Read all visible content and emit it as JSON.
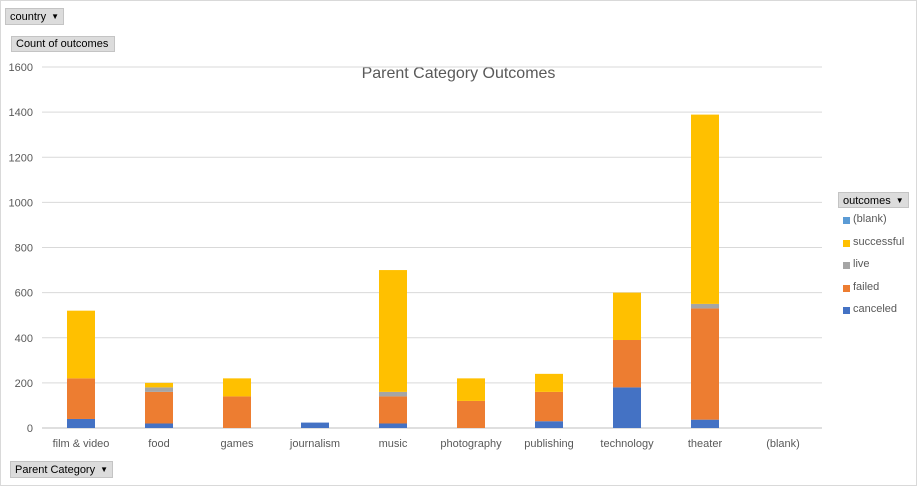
{
  "pivot": {
    "filter_field": "country",
    "value_field": "Count of outcomes",
    "axis_field": "Parent Category",
    "legend_field": "outcomes",
    "dropdown_icon": "dropdown-arrow-icon"
  },
  "chart_data": {
    "type": "bar",
    "stacked": true,
    "title": "Parent Category Outcomes",
    "xlabel": "",
    "ylabel": "",
    "categories": [
      "film & video",
      "food",
      "games",
      "journalism",
      "music",
      "photography",
      "publishing",
      "technology",
      "theater",
      "(blank)"
    ],
    "ylim": [
      0,
      1600
    ],
    "yticks": [
      0,
      200,
      400,
      600,
      800,
      1000,
      1200,
      1400,
      1600
    ],
    "grid": true,
    "legend_position": "right",
    "series": [
      {
        "name": "canceled",
        "color": "#4472c4",
        "values": [
          40,
          20,
          0,
          24,
          20,
          0,
          30,
          180,
          37,
          0
        ]
      },
      {
        "name": "failed",
        "color": "#ed7d31",
        "values": [
          180,
          140,
          140,
          0,
          120,
          120,
          130,
          210,
          493,
          0
        ]
      },
      {
        "name": "live",
        "color": "#a5a5a5",
        "values": [
          0,
          20,
          0,
          0,
          20,
          0,
          0,
          0,
          20,
          0
        ]
      },
      {
        "name": "successful",
        "color": "#ffc000",
        "values": [
          300,
          20,
          80,
          0,
          540,
          100,
          80,
          210,
          839,
          0
        ]
      },
      {
        "name": "(blank)",
        "color": "#5b9bd5",
        "values": [
          0,
          0,
          0,
          0,
          0,
          0,
          0,
          0,
          0,
          0
        ]
      }
    ],
    "legend_order": [
      "(blank)",
      "successful",
      "live",
      "failed",
      "canceled"
    ]
  }
}
